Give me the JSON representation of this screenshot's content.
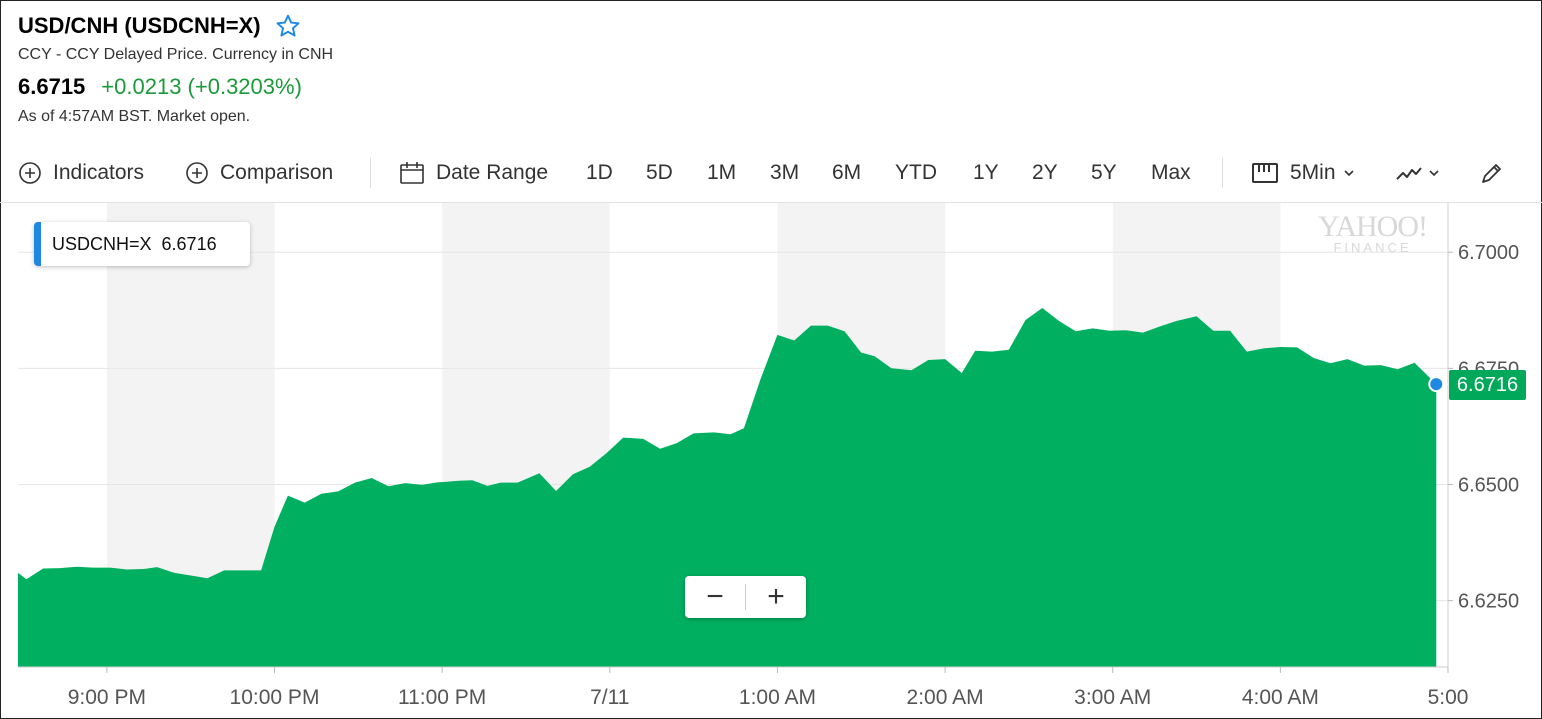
{
  "header": {
    "title": "USD/CNH (USDCNH=X)",
    "subtitle": "CCY - CCY Delayed Price. Currency in CNH",
    "price": "6.6715",
    "change": "+0.0213 (+0.3203%)",
    "as_of": "As of 4:57AM BST. Market open."
  },
  "toolbar": {
    "indicators": "Indicators",
    "comparison": "Comparison",
    "date_range": "Date Range",
    "ranges": [
      "1D",
      "5D",
      "1M",
      "3M",
      "6M",
      "YTD",
      "1Y",
      "2Y",
      "5Y",
      "Max"
    ],
    "interval": "5Min"
  },
  "tooltip": {
    "symbol": "USDCNH=X",
    "value": "6.6716"
  },
  "last_price_tag": "6.6716",
  "logo": {
    "line1": "YAHOO!",
    "line2": "FINANCE"
  },
  "zoom": {
    "out": "−",
    "in": "+"
  },
  "colors": {
    "area": "#00b060",
    "up": "#1a9a3a",
    "accent": "#1e88e5",
    "tag": "#00a85a"
  },
  "chart_data": {
    "type": "area",
    "x_ticks": [
      "9:00 PM",
      "10:00 PM",
      "11:00 PM",
      "7/11",
      "1:00 AM",
      "2:00 AM",
      "3:00 AM",
      "4:00 AM",
      "5:00"
    ],
    "y_ticks": [
      "6.7000",
      "6.6750",
      "6.6500",
      "6.6250"
    ],
    "ylim": [
      6.6107,
      6.7106
    ],
    "xlim": [
      20.47,
      29.0
    ],
    "grid": true,
    "series": [
      {
        "x": [
          20.47,
          20.52,
          20.62,
          20.72,
          20.82,
          20.92,
          21.02,
          21.12,
          21.22,
          21.3,
          21.4,
          21.5,
          21.6,
          21.7,
          21.8,
          21.92,
          22.0,
          22.08,
          22.18,
          22.28,
          22.38,
          22.48,
          22.58,
          22.68,
          22.78,
          22.88,
          22.98,
          23.0,
          23.1,
          23.18,
          23.27,
          23.35,
          23.45,
          23.58,
          23.68,
          23.78,
          23.88,
          23.98,
          24.08,
          24.2,
          24.3,
          24.4,
          24.5,
          24.62,
          24.72,
          24.8,
          24.9,
          25.0,
          25.1,
          25.2,
          25.3,
          25.4,
          25.5,
          25.58,
          25.68,
          25.8,
          25.9,
          26.0,
          26.1,
          26.18,
          26.28,
          26.38,
          26.48,
          26.58,
          26.68,
          26.78,
          26.88,
          26.98,
          27.08,
          27.18,
          27.28,
          27.38,
          27.5,
          27.6,
          27.7,
          27.8,
          27.9,
          28.0,
          28.1,
          28.2,
          28.3,
          28.4,
          28.5,
          28.6,
          28.7,
          28.8,
          28.93
        ],
        "y": [
          6.631,
          6.6296,
          6.6319,
          6.632,
          6.6323,
          6.6321,
          6.6321,
          6.6317,
          6.6318,
          6.6322,
          6.631,
          6.6304,
          6.6298,
          6.6315,
          6.6315,
          6.6315,
          6.6409,
          6.6476,
          6.6461,
          6.648,
          6.6485,
          6.6504,
          6.6514,
          6.6496,
          6.6503,
          6.6499,
          6.6505,
          6.6505,
          6.6508,
          6.6509,
          6.6497,
          6.6504,
          6.6504,
          6.6524,
          6.6486,
          6.6522,
          6.6538,
          6.6567,
          6.6601,
          6.6598,
          6.6577,
          6.6589,
          6.661,
          6.6612,
          6.6608,
          6.6621,
          6.6728,
          6.6822,
          6.681,
          6.6842,
          6.6842,
          6.683,
          6.6784,
          6.6776,
          6.675,
          6.6746,
          6.6768,
          6.677,
          6.674,
          6.6788,
          6.6786,
          6.679,
          6.6854,
          6.688,
          6.6852,
          6.683,
          6.6836,
          6.6831,
          6.6832,
          6.6827,
          6.684,
          6.6852,
          6.6862,
          6.6831,
          6.6831,
          6.6786,
          6.6793,
          6.6796,
          6.6795,
          6.6772,
          6.6761,
          6.677,
          6.6756,
          6.6757,
          6.6748,
          6.6762,
          6.6716
        ]
      }
    ]
  }
}
